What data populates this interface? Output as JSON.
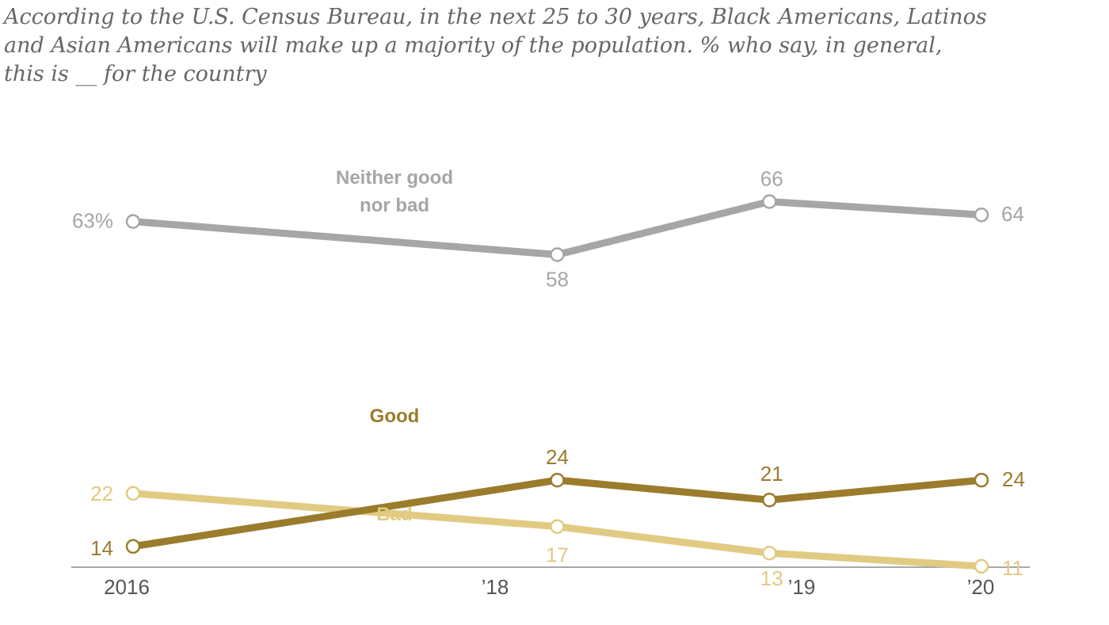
{
  "chart_data": {
    "type": "line",
    "subtitle_lines": [
      "According to the U.S. Census Bureau, in the next 25 to 30 years, Black Americans, Latinos",
      "and Asian Americans will make up a majority of the population. % who say, in general,",
      "this is __ for the country"
    ],
    "x": [
      "2016",
      "’18",
      "’19",
      "’20"
    ],
    "x_values": [
      2016,
      2018,
      2019,
      2020
    ],
    "ylim": [
      0,
      70
    ],
    "series": [
      {
        "name": "Neither good nor bad",
        "name_lines": [
          "Neither good",
          "nor bad"
        ],
        "color": "#a6a6a6",
        "values": [
          63,
          58,
          66,
          64
        ],
        "value_labels": [
          "63%",
          "58",
          "66",
          "64"
        ]
      },
      {
        "name": "Good",
        "name_lines": [
          "Good"
        ],
        "color": "#9b7b2c",
        "values": [
          14,
          24,
          21,
          24
        ],
        "value_labels": [
          "14",
          "24",
          "21",
          "24"
        ]
      },
      {
        "name": "Bad",
        "name_lines": [
          "Bad"
        ],
        "color": "#e1ca82",
        "values": [
          22,
          17,
          13,
          11
        ],
        "value_labels": [
          "22",
          "17",
          "13",
          "11"
        ]
      }
    ]
  }
}
